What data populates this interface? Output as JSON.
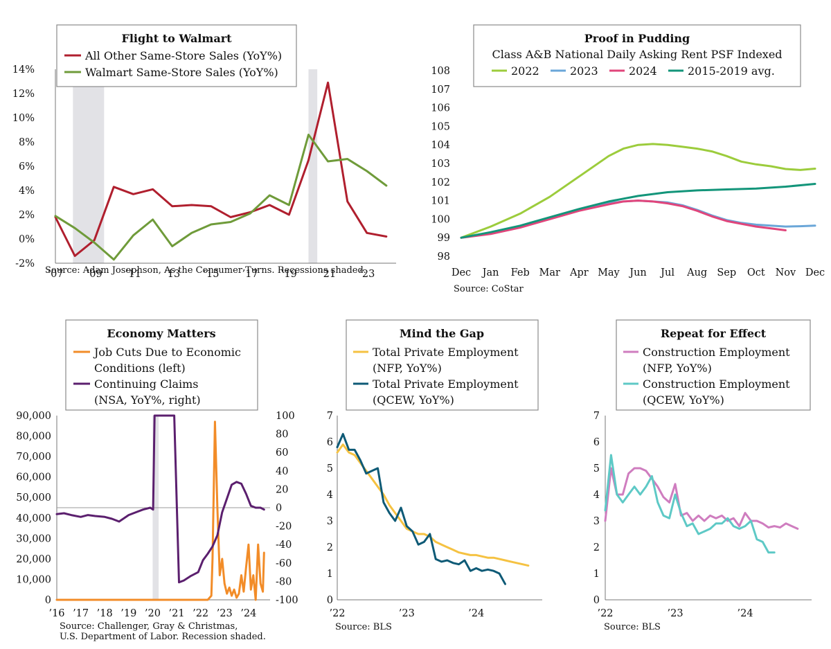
{
  "colors": {
    "walmart_other": "#b01f2e",
    "walmart_main": "#6f9b3a",
    "rent_2022": "#9ccc3c",
    "rent_2023": "#6aa6d8",
    "rent_2024": "#e0457b",
    "rent_avg": "#13957a",
    "job_cuts": "#f28c28",
    "claims": "#5b1f6e",
    "priv_nfp": "#f5c242",
    "priv_qcew": "#0e5a76",
    "con_nfp": "#cf7dbf",
    "con_qcew": "#5ec9c6",
    "recession": "#e2e2e6"
  },
  "chart_data": [
    {
      "id": "walmart",
      "type": "line",
      "title": "Flight to Walmart",
      "source": "Source: Adam Josephson, As the Consumer Turns. Recessions shaded.",
      "x_ticks": [
        "’07",
        "’09",
        "’11",
        "’13",
        "’15",
        "’17",
        "’19",
        "’21",
        "’23"
      ],
      "y_ticks": [
        "14%",
        "12%",
        "10%",
        "8%",
        "6%",
        "4%",
        "2%",
        "0%",
        "-2%"
      ],
      "ylim": [
        -2,
        14
      ],
      "xlim": [
        2007,
        2024.5
      ],
      "recessions": [
        [
          2007.9,
          2009.5
        ],
        [
          2020.0,
          2020.45
        ]
      ],
      "series": [
        {
          "name": "All Other Same-Store Sales (YoY%)",
          "color_key": "walmart_other",
          "x": [
            2007,
            2008,
            2009,
            2010,
            2011,
            2012,
            2013,
            2014,
            2015,
            2016,
            2017,
            2018,
            2019,
            2020,
            2021,
            2022,
            2023,
            2024
          ],
          "y": [
            1.8,
            -1.4,
            -0.1,
            4.3,
            3.7,
            4.1,
            2.7,
            2.8,
            2.7,
            1.8,
            2.2,
            2.8,
            2.0,
            6.5,
            12.9,
            3.1,
            0.5,
            0.2
          ]
        },
        {
          "name": "Walmart Same-Store Sales (YoY%)",
          "color_key": "walmart_main",
          "x": [
            2007,
            2008,
            2009,
            2010,
            2011,
            2012,
            2013,
            2014,
            2015,
            2016,
            2017,
            2018,
            2019,
            2020,
            2021,
            2022,
            2023,
            2024
          ],
          "y": [
            1.9,
            0.9,
            -0.3,
            -1.7,
            0.3,
            1.6,
            -0.6,
            0.5,
            1.2,
            1.4,
            2.1,
            3.6,
            2.8,
            8.6,
            6.4,
            6.6,
            5.6,
            4.4
          ]
        }
      ]
    },
    {
      "id": "rent",
      "type": "line",
      "title": "Proof in Pudding",
      "subtitle": "Class A&B National Daily Asking Rent PSF Indexed",
      "source": "Source: CoStar",
      "x_ticks": [
        "Dec",
        "Jan",
        "Feb",
        "Mar",
        "Apr",
        "May",
        "Jun",
        "Jul",
        "Aug",
        "Sep",
        "Oct",
        "Nov",
        "Dec"
      ],
      "y_ticks": [
        "108",
        "107",
        "106",
        "105",
        "104",
        "103",
        "102",
        "101",
        "100",
        "99",
        "98"
      ],
      "ylim": [
        98,
        108
      ],
      "xlim": [
        0,
        12
      ],
      "series": [
        {
          "name": "2022",
          "color_key": "rent_2022",
          "x": [
            0,
            1,
            2,
            3,
            4,
            5,
            5.5,
            6,
            6.5,
            7,
            7.5,
            8,
            8.5,
            9,
            9.5,
            10,
            10.5,
            11,
            11.5,
            12
          ],
          "y": [
            99.0,
            99.6,
            100.3,
            101.2,
            102.3,
            103.4,
            103.8,
            104.0,
            104.05,
            104.0,
            103.9,
            103.8,
            103.65,
            103.4,
            103.1,
            102.95,
            102.85,
            102.7,
            102.65,
            102.72
          ]
        },
        {
          "name": "2023",
          "color_key": "rent_2023",
          "x": [
            0,
            1,
            2,
            3,
            4,
            5,
            5.5,
            6,
            6.5,
            7,
            7.5,
            8,
            8.5,
            9,
            9.5,
            10,
            10.5,
            11,
            11.5,
            12
          ],
          "y": [
            99.0,
            99.25,
            99.6,
            100.05,
            100.5,
            100.85,
            100.95,
            101.0,
            100.95,
            100.9,
            100.75,
            100.5,
            100.2,
            99.95,
            99.8,
            99.7,
            99.65,
            99.6,
            99.62,
            99.65
          ]
        },
        {
          "name": "2024",
          "color_key": "rent_2024",
          "x": [
            0,
            1,
            2,
            3,
            4,
            5,
            5.5,
            6,
            6.5,
            7,
            7.5,
            8,
            8.5,
            9,
            9.5,
            10,
            10.5,
            11
          ],
          "y": [
            99.0,
            99.2,
            99.55,
            100.0,
            100.45,
            100.8,
            100.95,
            101.0,
            100.95,
            100.85,
            100.7,
            100.45,
            100.15,
            99.9,
            99.75,
            99.6,
            99.5,
            99.4
          ]
        },
        {
          "name": "2015-2019 avg.",
          "color_key": "rent_avg",
          "x": [
            0,
            1,
            2,
            3,
            4,
            5,
            6,
            7,
            8,
            9,
            10,
            11,
            12
          ],
          "y": [
            99.0,
            99.3,
            99.65,
            100.1,
            100.55,
            100.95,
            101.25,
            101.45,
            101.55,
            101.6,
            101.65,
            101.75,
            101.9
          ]
        }
      ]
    },
    {
      "id": "economy",
      "type": "line",
      "title": "Economy Matters",
      "source_lines": [
        "Source: Challenger, Gray & Christmas,",
        "U.S. Department of Labor. Recession shaded."
      ],
      "x_ticks": [
        "’16",
        "’17",
        "’18",
        "’19",
        "’20",
        "’21",
        "’22",
        "’23",
        "’24"
      ],
      "y_left_ticks": [
        "90,000",
        "80,000",
        "70,000",
        "60,000",
        "50,000",
        "40,000",
        "30,000",
        "20,000",
        "10,000",
        "0"
      ],
      "y_right_ticks": [
        "100",
        "80",
        "60",
        "40",
        "20",
        "0",
        "-20",
        "-40",
        "-60",
        "-80",
        "-100"
      ],
      "ylim_left": [
        0,
        90000
      ],
      "ylim_right": [
        -100,
        100
      ],
      "xlim": [
        2016,
        2024.9
      ],
      "recessions": [
        [
          2020.0,
          2020.25
        ]
      ],
      "series": [
        {
          "name": "Job Cuts Due to Economic Conditions (left)",
          "legend_lines": [
            "Job Cuts Due to Economic",
            "Conditions (left)"
          ],
          "color_key": "job_cuts",
          "axis": "left",
          "x": [
            2016,
            2020,
            2022.3,
            2022.45,
            2022.5,
            2022.6,
            2022.7,
            2022.8,
            2022.9,
            2023.0,
            2023.1,
            2023.2,
            2023.3,
            2023.4,
            2023.5,
            2023.6,
            2023.7,
            2023.8,
            2023.9,
            2024.0,
            2024.1,
            2024.2,
            2024.3,
            2024.4,
            2024.5,
            2024.6,
            2024.65
          ],
          "y": [
            0,
            0,
            0,
            2000,
            20000,
            87000,
            45000,
            12000,
            20000,
            8000,
            3000,
            6000,
            2000,
            5000,
            1000,
            3000,
            12000,
            4000,
            16000,
            27000,
            5000,
            12000,
            0,
            27000,
            8000,
            4000,
            23000
          ]
        },
        {
          "name": "Continuing Claims (NSA, YoY%, right)",
          "legend_lines": [
            "Continuing Claims",
            "(NSA, YoY%, right)"
          ],
          "color_key": "claims",
          "axis": "right",
          "x": [
            2016,
            2016.3,
            2016.6,
            2017,
            2017.3,
            2017.6,
            2018,
            2018.3,
            2018.6,
            2019,
            2019.3,
            2019.6,
            2019.9,
            2020.02,
            2020.08,
            2020.9,
            2021.1,
            2021.3,
            2021.6,
            2021.9,
            2022.1,
            2022.3,
            2022.5,
            2022.7,
            2022.9,
            2023.1,
            2023.3,
            2023.5,
            2023.7,
            2023.9,
            2024.1,
            2024.3,
            2024.5,
            2024.65
          ],
          "y": [
            -7,
            -6,
            -8,
            -10,
            -8,
            -9,
            -10,
            -12,
            -15,
            -8,
            -5,
            -2,
            0,
            -2,
            100,
            100,
            -81,
            -79,
            -74,
            -70,
            -57,
            -50,
            -42,
            -30,
            -5,
            10,
            25,
            28,
            26,
            15,
            2,
            0,
            0,
            -2
          ]
        }
      ]
    },
    {
      "id": "private",
      "type": "line",
      "title": "Mind the Gap",
      "source": "Source: BLS",
      "x_ticks": [
        "’22",
        "’23",
        "’24"
      ],
      "y_ticks": [
        "7",
        "6",
        "5",
        "4",
        "3",
        "2",
        "1",
        "0"
      ],
      "ylim": [
        0,
        7
      ],
      "xlim": [
        2022,
        2024.95
      ],
      "series": [
        {
          "name": "Total Private Employment (NFP, YoY%)",
          "legend_lines": [
            "Total Private Employment",
            "(NFP, YoY%)"
          ],
          "color_key": "priv_nfp",
          "x": [
            2022,
            2022.083,
            2022.167,
            2022.25,
            2022.333,
            2022.417,
            2022.5,
            2022.583,
            2022.667,
            2022.75,
            2022.833,
            2022.917,
            2023,
            2023.083,
            2023.167,
            2023.25,
            2023.333,
            2023.417,
            2023.5,
            2023.583,
            2023.667,
            2023.75,
            2023.833,
            2023.917,
            2024,
            2024.083,
            2024.167,
            2024.25,
            2024.333,
            2024.417,
            2024.5,
            2024.583,
            2024.667,
            2024.75
          ],
          "y": [
            5.6,
            5.9,
            5.6,
            5.5,
            5.2,
            4.9,
            4.6,
            4.3,
            4.0,
            3.6,
            3.3,
            3.0,
            2.7,
            2.6,
            2.5,
            2.5,
            2.4,
            2.2,
            2.1,
            2.0,
            1.9,
            1.8,
            1.75,
            1.7,
            1.7,
            1.65,
            1.6,
            1.6,
            1.55,
            1.5,
            1.45,
            1.4,
            1.35,
            1.3
          ]
        },
        {
          "name": "Total Private Employment (QCEW, YoY%)",
          "legend_lines": [
            "Total Private Employment",
            "(QCEW, YoY%)"
          ],
          "color_key": "priv_qcew",
          "x": [
            2022,
            2022.083,
            2022.167,
            2022.25,
            2022.333,
            2022.417,
            2022.5,
            2022.583,
            2022.667,
            2022.75,
            2022.833,
            2022.917,
            2023,
            2023.083,
            2023.167,
            2023.25,
            2023.333,
            2023.417,
            2023.5,
            2023.583,
            2023.667,
            2023.75,
            2023.833,
            2023.917,
            2024,
            2024.083,
            2024.167,
            2024.25,
            2024.333,
            2024.417
          ],
          "y": [
            5.8,
            6.3,
            5.7,
            5.7,
            5.3,
            4.8,
            4.9,
            5.0,
            3.7,
            3.3,
            3.0,
            3.5,
            2.8,
            2.6,
            2.1,
            2.2,
            2.5,
            1.55,
            1.45,
            1.5,
            1.4,
            1.35,
            1.5,
            1.1,
            1.2,
            1.1,
            1.15,
            1.1,
            1.0,
            0.6
          ]
        }
      ]
    },
    {
      "id": "construction",
      "type": "line",
      "title": "Repeat for Effect",
      "source": "Source: BLS",
      "x_ticks": [
        "’22",
        "’23",
        "’24"
      ],
      "y_ticks": [
        "7",
        "6",
        "5",
        "4",
        "3",
        "2",
        "1",
        "0"
      ],
      "ylim": [
        0,
        7
      ],
      "xlim": [
        2022,
        2024.95
      ],
      "series": [
        {
          "name": "Construction Employment (NFP, YoY%)",
          "legend_lines": [
            "Construction Employment",
            "(NFP, YoY%)"
          ],
          "color_key": "con_nfp",
          "x": [
            2022,
            2022.083,
            2022.167,
            2022.25,
            2022.333,
            2022.417,
            2022.5,
            2022.583,
            2022.667,
            2022.75,
            2022.833,
            2022.917,
            2023,
            2023.083,
            2023.167,
            2023.25,
            2023.333,
            2023.417,
            2023.5,
            2023.583,
            2023.667,
            2023.75,
            2023.833,
            2023.917,
            2024,
            2024.083,
            2024.167,
            2024.25,
            2024.333,
            2024.417,
            2024.5,
            2024.583,
            2024.667,
            2024.75
          ],
          "y": [
            3.0,
            5.0,
            4.0,
            4.0,
            4.8,
            5.0,
            5.0,
            4.9,
            4.6,
            4.3,
            3.9,
            3.7,
            4.4,
            3.2,
            3.3,
            3.0,
            3.2,
            3.0,
            3.2,
            3.1,
            3.2,
            3.0,
            3.1,
            2.8,
            3.3,
            3.0,
            3.0,
            2.9,
            2.75,
            2.8,
            2.75,
            2.9,
            2.8,
            2.7
          ]
        },
        {
          "name": "Construction Employment (QCEW, YoY%)",
          "legend_lines": [
            "Construction Employment",
            "(QCEW, YoY%)"
          ],
          "color_key": "con_qcew",
          "x": [
            2022,
            2022.083,
            2022.167,
            2022.25,
            2022.333,
            2022.417,
            2022.5,
            2022.583,
            2022.667,
            2022.75,
            2022.833,
            2022.917,
            2023,
            2023.083,
            2023.167,
            2023.25,
            2023.333,
            2023.417,
            2023.5,
            2023.583,
            2023.667,
            2023.75,
            2023.833,
            2023.917,
            2024,
            2024.083,
            2024.167,
            2024.25,
            2024.333,
            2024.417
          ],
          "y": [
            3.4,
            5.5,
            4.0,
            3.7,
            4.0,
            4.3,
            4.0,
            4.3,
            4.7,
            3.7,
            3.2,
            3.1,
            4.0,
            3.3,
            2.8,
            2.9,
            2.5,
            2.6,
            2.7,
            2.9,
            2.9,
            3.1,
            2.8,
            2.7,
            2.8,
            3.0,
            2.3,
            2.2,
            1.8,
            1.8
          ]
        }
      ]
    }
  ]
}
